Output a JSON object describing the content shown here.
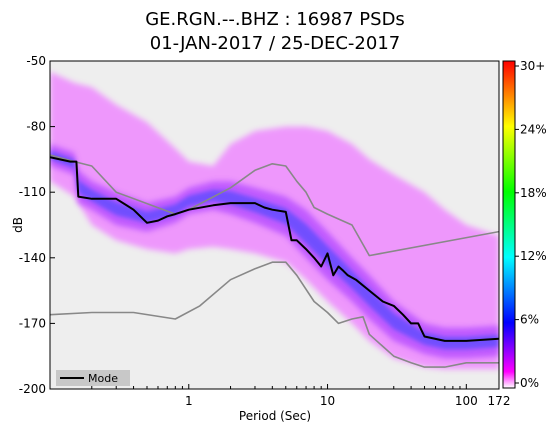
{
  "title_line1": "GE.RGN.--.BHZ : 16987 PSDs",
  "title_line2": "01-JAN-2017 / 25-DEC-2017",
  "chart_data": {
    "type": "heatmap",
    "title": "GE.RGN.--.BHZ : 16987 PSDs\n01-JAN-2017 / 25-DEC-2017",
    "xlabel": "Period (Sec)",
    "ylabel": "dB",
    "x_scale": "log",
    "xlim": [
      0.1,
      172
    ],
    "ylim": [
      -200,
      -50
    ],
    "x_ticks": [
      {
        "value": 1,
        "label": "1"
      },
      {
        "value": 10,
        "label": "10"
      },
      {
        "value": 100,
        "label": "100"
      },
      {
        "value": 172,
        "label": "172"
      }
    ],
    "y_ticks": [
      {
        "value": -50,
        "label": "-50"
      },
      {
        "value": -80,
        "label": "-80"
      },
      {
        "value": -110,
        "label": "-110"
      },
      {
        "value": -140,
        "label": "-140"
      },
      {
        "value": -170,
        "label": "-170"
      },
      {
        "value": -200,
        "label": "-200"
      }
    ],
    "colorbar": {
      "ticks": [
        "0%",
        "6%",
        "12%",
        "18%",
        "24%",
        "30+"
      ],
      "colors": [
        "#ffffff",
        "#ff00ff",
        "#0000ff",
        "#00ffff",
        "#00ff00",
        "#ffff00",
        "#ff0000"
      ]
    },
    "legend": {
      "entries": [
        "Mode"
      ],
      "placement": "bottom-left"
    },
    "density_band": {
      "x": [
        0.1,
        0.15,
        0.2,
        0.3,
        0.5,
        0.8,
        1,
        1.5,
        2,
        3,
        5,
        7,
        10,
        15,
        20,
        30,
        50,
        70,
        100,
        172
      ],
      "upper": [
        -55,
        -60,
        -62,
        -70,
        -78,
        -90,
        -96,
        -98,
        -88,
        -82,
        -80,
        -80,
        -82,
        -88,
        -95,
        -102,
        -110,
        -118,
        -125,
        -130
      ],
      "lower": [
        -105,
        -112,
        -125,
        -132,
        -136,
        -138,
        -136,
        -135,
        -136,
        -138,
        -142,
        -150,
        -160,
        -170,
        -178,
        -186,
        -190,
        -191,
        -191,
        -191
      ]
    },
    "core_band": {
      "x": [
        0.1,
        0.15,
        0.16,
        0.2,
        0.3,
        0.5,
        0.8,
        1,
        1.5,
        2,
        3,
        5,
        7,
        10,
        15,
        20,
        30,
        50,
        70,
        100,
        172
      ],
      "upper": [
        -88,
        -92,
        -100,
        -105,
        -110,
        -115,
        -112,
        -108,
        -105,
        -105,
        -108,
        -112,
        -118,
        -128,
        -140,
        -148,
        -160,
        -170,
        -172,
        -172,
        -171
      ],
      "lower": [
        -98,
        -102,
        -115,
        -118,
        -125,
        -128,
        -124,
        -120,
        -118,
        -120,
        -124,
        -130,
        -140,
        -150,
        -160,
        -168,
        -178,
        -184,
        -186,
        -186,
        -185
      ]
    },
    "series": [
      {
        "name": "Mode",
        "color": "#000000",
        "x": [
          0.1,
          0.14,
          0.155,
          0.16,
          0.2,
          0.3,
          0.4,
          0.5,
          0.6,
          0.7,
          0.8,
          1,
          1.5,
          2,
          2.5,
          3,
          3.5,
          4,
          5,
          5.5,
          6,
          7,
          8,
          9,
          10,
          11,
          12,
          13,
          14,
          16,
          20,
          25,
          30,
          35,
          40,
          45,
          50,
          70,
          100,
          172
        ],
        "y": [
          -94,
          -96,
          -96,
          -112,
          -113,
          -113,
          -118,
          -124,
          -123,
          -121,
          -120,
          -118,
          -116,
          -115,
          -115,
          -115,
          -117,
          -118,
          -119,
          -132,
          -132,
          -136,
          -140,
          -144,
          -138,
          -148,
          -144,
          -146,
          -148,
          -150,
          -155,
          -160,
          -162,
          -166,
          -170,
          -170,
          -176,
          -178,
          -178,
          -177
        ]
      },
      {
        "name": "",
        "color": "#888888",
        "x": [
          0.1,
          0.15,
          0.2,
          0.3,
          0.8,
          1,
          2,
          3,
          4,
          5,
          6,
          7,
          8,
          10,
          15,
          20,
          172
        ],
        "y": [
          -93,
          -96,
          -98,
          -110,
          -120,
          -118,
          -108,
          -100,
          -97,
          -98,
          -105,
          -110,
          -117,
          -120,
          -125,
          -139,
          -128
        ]
      },
      {
        "name": "",
        "color": "#888888",
        "x": [
          0.1,
          0.2,
          0.4,
          0.8,
          1.2,
          2,
          3,
          4,
          5,
          6,
          8,
          10,
          12,
          15,
          18,
          20,
          30,
          40,
          50,
          70,
          100,
          172
        ],
        "y": [
          -166,
          -165,
          -165,
          -168,
          -162,
          -150,
          -145,
          -142,
          -142,
          -148,
          -160,
          -165,
          -170,
          -168,
          -167,
          -175,
          -185,
          -188,
          -190,
          -190,
          -188,
          -188
        ]
      }
    ]
  }
}
